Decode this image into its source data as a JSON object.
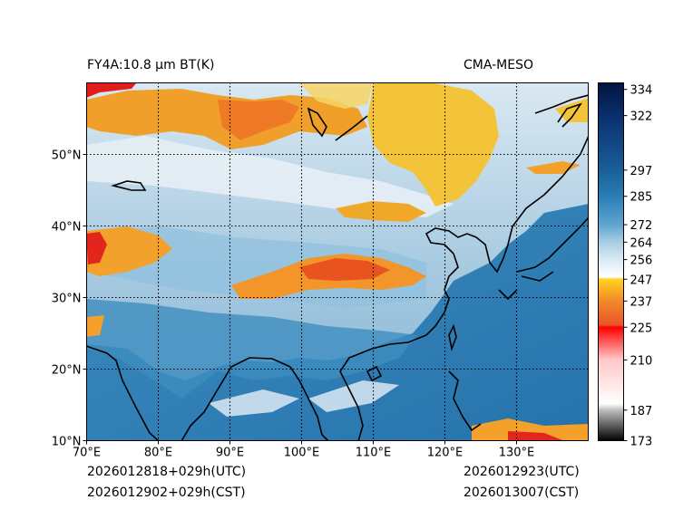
{
  "header": {
    "left_title": "FY4A:10.8 µm BT(K)",
    "right_title": "CMA-MESO"
  },
  "footer": {
    "init_utc": "2026012818+029h(UTC)",
    "init_cst": "2026012902+029h(CST)",
    "valid_utc": "2026012923(UTC)",
    "valid_cst": "2026013007(CST)"
  },
  "map": {
    "lon_range": [
      70,
      140
    ],
    "lat_range": [
      10,
      60
    ],
    "lon_ticks": [
      {
        "value": 70,
        "label": "70°E"
      },
      {
        "value": 80,
        "label": "80°E"
      },
      {
        "value": 90,
        "label": "90°E"
      },
      {
        "value": 100,
        "label": "100°E"
      },
      {
        "value": 110,
        "label": "110°E"
      },
      {
        "value": 120,
        "label": "120°E"
      },
      {
        "value": 130,
        "label": "130°E"
      }
    ],
    "lat_ticks": [
      {
        "value": 10,
        "label": "10°N"
      },
      {
        "value": 20,
        "label": "20°N"
      },
      {
        "value": 30,
        "label": "30°N"
      },
      {
        "value": 40,
        "label": "40°N"
      },
      {
        "value": 50,
        "label": "50°N"
      }
    ],
    "grid": "dotted",
    "colors": {
      "ocean": "#2b7fb4",
      "cloud_cold": "#f0b42a",
      "cloud_cold_edge": "#e9762c",
      "cloud_coldest": "#e62020",
      "cloud_cirrus": "#dfe9f0",
      "land_mid": "#9cc3dc",
      "coast": "#000000"
    },
    "features": [
      {
        "name": "mongolia-cloud-shield",
        "type": "cold-cloud"
      },
      {
        "name": "siberia-cloud-band",
        "type": "cold-cloud"
      },
      {
        "name": "tibet-cloud-band",
        "type": "cold-cloud"
      },
      {
        "name": "central-china-cloud",
        "type": "cold-cloud"
      },
      {
        "name": "western-edge-cloud",
        "type": "coldest-cloud"
      }
    ]
  },
  "colorbar": {
    "range": [
      173,
      337
    ],
    "ticks": [
      173,
      187,
      210,
      225,
      237,
      247,
      256,
      264,
      272,
      285,
      297,
      322,
      334
    ],
    "stops": [
      {
        "value": 173,
        "color": "#000000"
      },
      {
        "value": 187,
        "color": "#bdbdbd"
      },
      {
        "value": 190,
        "color": "#ffffff"
      },
      {
        "value": 210,
        "color": "#ffc8c8"
      },
      {
        "value": 225,
        "color": "#ff0000"
      },
      {
        "value": 226,
        "color": "#e9542b"
      },
      {
        "value": 237,
        "color": "#f08a2a"
      },
      {
        "value": 247,
        "color": "#ffd21f"
      },
      {
        "value": 248,
        "color": "#ffffff"
      },
      {
        "value": 256,
        "color": "#d9e9f4"
      },
      {
        "value": 264,
        "color": "#a9cde3"
      },
      {
        "value": 272,
        "color": "#5fa5cf"
      },
      {
        "value": 285,
        "color": "#2a7db5"
      },
      {
        "value": 297,
        "color": "#1a5f99"
      },
      {
        "value": 322,
        "color": "#0a2f6e"
      },
      {
        "value": 337,
        "color": "#02143f"
      }
    ]
  }
}
